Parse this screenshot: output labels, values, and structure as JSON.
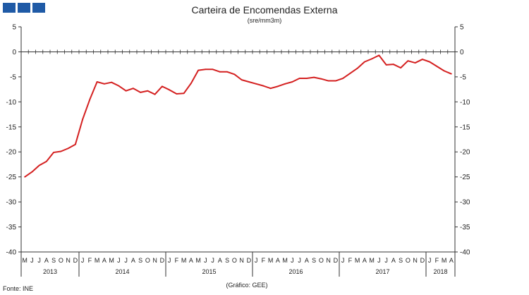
{
  "header": {
    "logo": "INE-logo-blocks"
  },
  "footer": {
    "source": "Fonte: INE",
    "credit": "(Gráfico: GEE)"
  },
  "chart_data": {
    "type": "line",
    "title": "Carteira de Encomendas Externa",
    "subtitle": "(sre/mm3m)",
    "xlabel": "",
    "ylabel": "",
    "ylim": [
      -40,
      5
    ],
    "yticks": [
      5,
      0,
      -5,
      -10,
      -15,
      -20,
      -25,
      -30,
      -35,
      -40
    ],
    "grid": false,
    "legend": "none",
    "line_color": "#d42020",
    "x": [
      "2013-05",
      "2013-06",
      "2013-07",
      "2013-08",
      "2013-09",
      "2013-10",
      "2013-11",
      "2013-12",
      "2014-01",
      "2014-02",
      "2014-03",
      "2014-04",
      "2014-05",
      "2014-06",
      "2014-07",
      "2014-08",
      "2014-09",
      "2014-10",
      "2014-11",
      "2014-12",
      "2015-01",
      "2015-02",
      "2015-03",
      "2015-04",
      "2015-05",
      "2015-06",
      "2015-07",
      "2015-08",
      "2015-09",
      "2015-10",
      "2015-11",
      "2015-12",
      "2016-01",
      "2016-02",
      "2016-03",
      "2016-04",
      "2016-05",
      "2016-06",
      "2016-07",
      "2016-08",
      "2016-09",
      "2016-10",
      "2016-11",
      "2016-12",
      "2017-01",
      "2017-02",
      "2017-03",
      "2017-04",
      "2017-05",
      "2017-06",
      "2017-07",
      "2017-08",
      "2017-09",
      "2017-10",
      "2017-11",
      "2017-12",
      "2018-01",
      "2018-02",
      "2018-03",
      "2018-04"
    ],
    "month_labels": [
      "M",
      "J",
      "J",
      "A",
      "S",
      "O",
      "N",
      "D",
      "J",
      "F",
      "M",
      "A",
      "M",
      "J",
      "J",
      "A",
      "S",
      "O",
      "N",
      "D",
      "J",
      "F",
      "M",
      "A",
      "M",
      "J",
      "J",
      "A",
      "S",
      "O",
      "N",
      "D",
      "J",
      "F",
      "M",
      "A",
      "M",
      "J",
      "J",
      "A",
      "S",
      "O",
      "N",
      "D",
      "J",
      "F",
      "M",
      "A",
      "M",
      "J",
      "J",
      "A",
      "S",
      "O",
      "N",
      "D",
      "J",
      "F",
      "M",
      "A"
    ],
    "years": [
      {
        "label": "2013",
        "start": 0,
        "end": 7
      },
      {
        "label": "2014",
        "start": 8,
        "end": 19
      },
      {
        "label": "2015",
        "start": 20,
        "end": 31
      },
      {
        "label": "2016",
        "start": 32,
        "end": 43
      },
      {
        "label": "2017",
        "start": 44,
        "end": 55
      },
      {
        "label": "2018",
        "start": 56,
        "end": 59
      }
    ],
    "series": [
      {
        "values": [
          -25,
          -24,
          -22.7,
          -21.9,
          -20.1,
          -19.9,
          -19.3,
          -18.5,
          -13.5,
          -9.5,
          -6,
          -6.4,
          -6.1,
          -6.8,
          -7.8,
          -7.3,
          -8.1,
          -7.8,
          -8.5,
          -6.9,
          -7.6,
          -8.4,
          -8.3,
          -6.3,
          -3.7,
          -3.5,
          -3.5,
          -4,
          -4,
          -4.5,
          -5.6,
          -6,
          -6.4,
          -6.8,
          -7.3,
          -6.9,
          -6.4,
          -6,
          -5.3,
          -5.3,
          -5.1,
          -5.4,
          -5.8,
          -5.8,
          -5.3,
          -4.3,
          -3.3,
          -2,
          -1.4,
          -0.7,
          -2.6,
          -2.5,
          -3.2,
          -1.8,
          -2.2,
          -1.5,
          -2,
          -2.9,
          -3.8,
          -4.4
        ]
      }
    ]
  }
}
